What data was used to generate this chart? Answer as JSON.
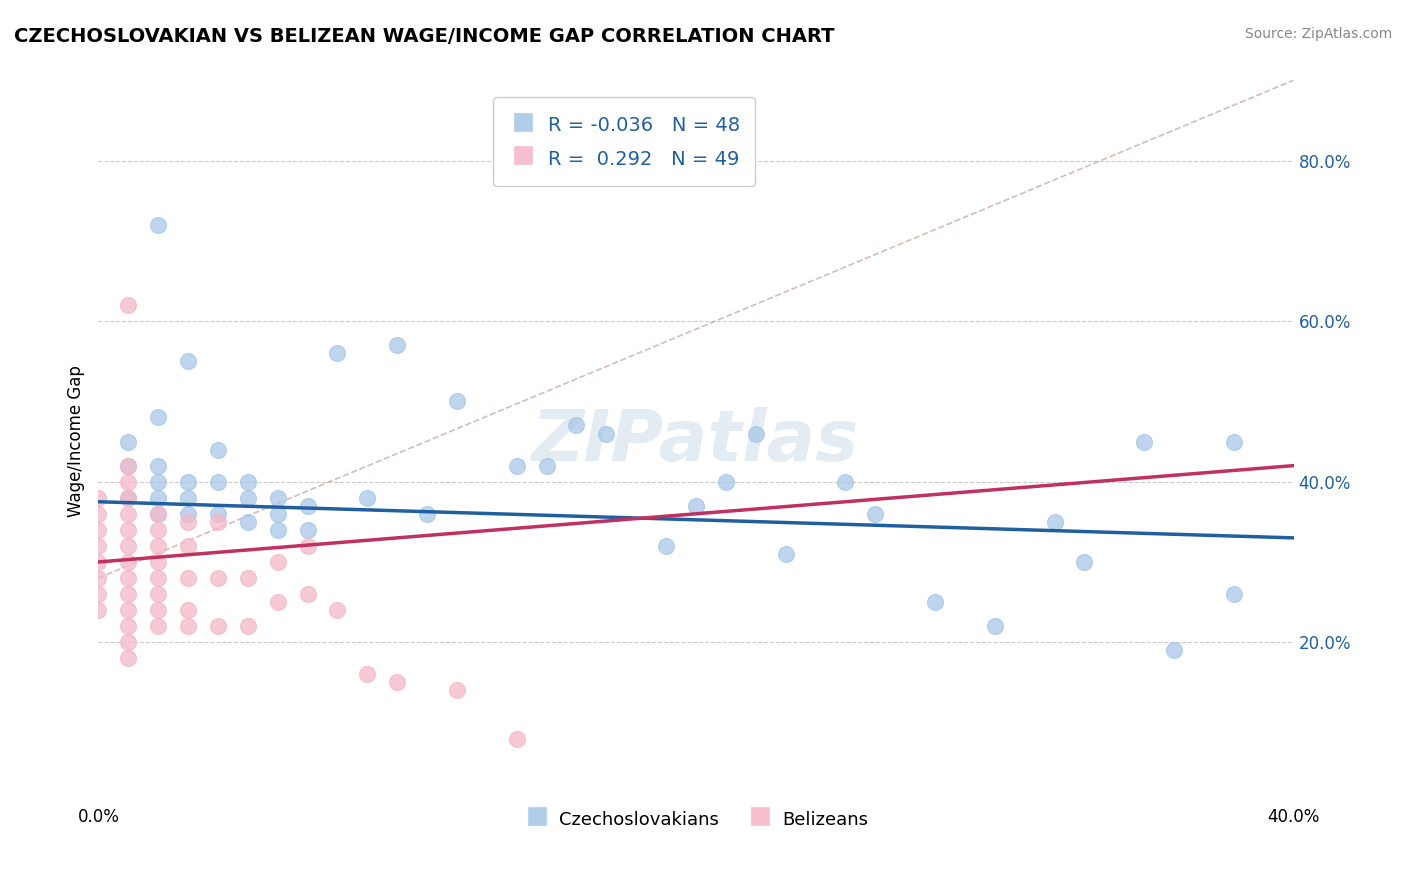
{
  "title": "CZECHOSLOVAKIAN VS BELIZEAN WAGE/INCOME GAP CORRELATION CHART",
  "source": "Source: ZipAtlas.com",
  "ylabel": "Wage/Income Gap",
  "ylabel_right_ticks": [
    "20.0%",
    "40.0%",
    "60.0%",
    "80.0%"
  ],
  "ylabel_right_vals": [
    0.2,
    0.4,
    0.6,
    0.8
  ],
  "xmin": 0.0,
  "xmax": 0.4,
  "ymin": 0.0,
  "ymax": 0.9,
  "legend_blue_label": "Czechoslovakians",
  "legend_pink_label": "Belizeans",
  "R_blue": -0.036,
  "N_blue": 48,
  "R_pink": 0.292,
  "N_pink": 49,
  "blue_color": "#a8c8e8",
  "pink_color": "#f4b8c8",
  "blue_line_color": "#2060a0",
  "pink_line_color": "#c03060",
  "background_color": "#ffffff",
  "watermark": "ZIPatlas",
  "blue_x": [
    0.01,
    0.01,
    0.01,
    0.02,
    0.02,
    0.02,
    0.02,
    0.02,
    0.02,
    0.03,
    0.03,
    0.03,
    0.03,
    0.04,
    0.04,
    0.04,
    0.05,
    0.05,
    0.05,
    0.06,
    0.06,
    0.06,
    0.07,
    0.07,
    0.08,
    0.09,
    0.1,
    0.11,
    0.12,
    0.14,
    0.15,
    0.16,
    0.17,
    0.19,
    0.2,
    0.21,
    0.22,
    0.23,
    0.25,
    0.26,
    0.28,
    0.3,
    0.32,
    0.33,
    0.35,
    0.36,
    0.38,
    0.38
  ],
  "blue_y": [
    0.38,
    0.42,
    0.45,
    0.36,
    0.38,
    0.4,
    0.42,
    0.48,
    0.72,
    0.36,
    0.38,
    0.4,
    0.55,
    0.36,
    0.4,
    0.44,
    0.35,
    0.38,
    0.4,
    0.34,
    0.36,
    0.38,
    0.34,
    0.37,
    0.56,
    0.38,
    0.57,
    0.36,
    0.5,
    0.42,
    0.42,
    0.47,
    0.46,
    0.32,
    0.37,
    0.4,
    0.46,
    0.31,
    0.4,
    0.36,
    0.25,
    0.22,
    0.35,
    0.3,
    0.45,
    0.19,
    0.26,
    0.45
  ],
  "pink_x": [
    0.0,
    0.0,
    0.0,
    0.0,
    0.0,
    0.0,
    0.0,
    0.0,
    0.01,
    0.01,
    0.01,
    0.01,
    0.01,
    0.01,
    0.01,
    0.01,
    0.01,
    0.01,
    0.01,
    0.01,
    0.01,
    0.01,
    0.02,
    0.02,
    0.02,
    0.02,
    0.02,
    0.02,
    0.02,
    0.02,
    0.03,
    0.03,
    0.03,
    0.03,
    0.03,
    0.04,
    0.04,
    0.04,
    0.05,
    0.05,
    0.06,
    0.06,
    0.07,
    0.07,
    0.08,
    0.09,
    0.1,
    0.12,
    0.14
  ],
  "pink_y": [
    0.24,
    0.26,
    0.28,
    0.3,
    0.32,
    0.34,
    0.36,
    0.38,
    0.18,
    0.2,
    0.22,
    0.24,
    0.26,
    0.28,
    0.3,
    0.32,
    0.34,
    0.36,
    0.38,
    0.4,
    0.42,
    0.62,
    0.22,
    0.24,
    0.26,
    0.28,
    0.3,
    0.32,
    0.34,
    0.36,
    0.22,
    0.24,
    0.28,
    0.32,
    0.35,
    0.22,
    0.28,
    0.35,
    0.22,
    0.28,
    0.25,
    0.3,
    0.26,
    0.32,
    0.24,
    0.16,
    0.15,
    0.14,
    0.08
  ]
}
